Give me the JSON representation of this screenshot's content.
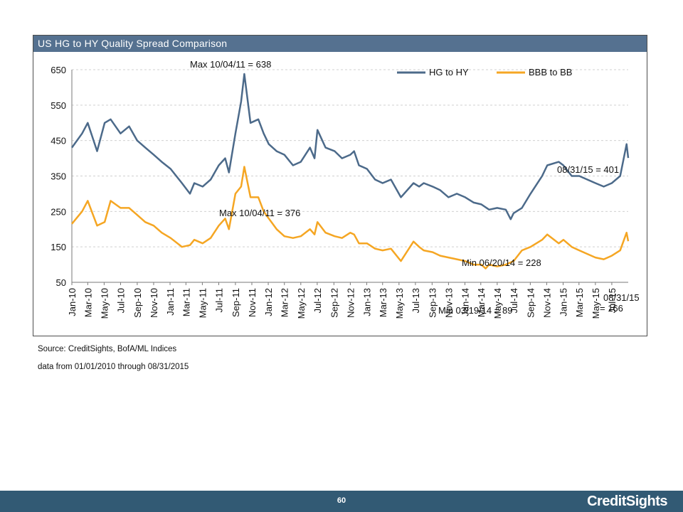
{
  "chart_data": {
    "type": "line",
    "title": "US HG to HY Quality Spread Comparison",
    "xlabel": "",
    "ylabel": "",
    "x_range": [
      "2010-01-01",
      "2015-08-31"
    ],
    "ylim": [
      50,
      650
    ],
    "yticks": [
      50,
      150,
      250,
      350,
      450,
      550,
      650
    ],
    "xtick_labels": [
      "Jan-10",
      "Mar-10",
      "May-10",
      "Jul-10",
      "Sep-10",
      "Nov-10",
      "Jan-11",
      "Mar-11",
      "May-11",
      "Jul-11",
      "Sep-11",
      "Nov-11",
      "Jan-12",
      "Mar-12",
      "May-12",
      "Jul-12",
      "Sep-12",
      "Nov-12",
      "Jan-13",
      "Mar-13",
      "May-13",
      "Jul-13",
      "Sep-13",
      "Nov-13",
      "Jan-14",
      "Mar-14",
      "May-14",
      "Jul-14",
      "Sep-14",
      "Nov-14",
      "Jan-15",
      "Mar-15",
      "May-15",
      "Jul-15"
    ],
    "grid": true,
    "legend_position": "top-right",
    "series": [
      {
        "name": "HG to HY",
        "color": "#4c6a8a",
        "x": [
          "2010-01-01",
          "2010-02-08",
          "2010-03-01",
          "2010-04-05",
          "2010-05-03",
          "2010-05-25",
          "2010-07-01",
          "2010-08-02",
          "2010-09-01",
          "2010-10-01",
          "2010-11-01",
          "2010-12-01",
          "2011-01-03",
          "2011-02-14",
          "2011-03-16",
          "2011-04-01",
          "2011-05-02",
          "2011-06-01",
          "2011-07-01",
          "2011-07-25",
          "2011-08-08",
          "2011-09-01",
          "2011-09-22",
          "2011-10-04",
          "2011-10-27",
          "2011-11-25",
          "2011-12-15",
          "2012-01-03",
          "2012-02-01",
          "2012-03-01",
          "2012-04-02",
          "2012-05-01",
          "2012-06-04",
          "2012-06-21",
          "2012-07-02",
          "2012-08-01",
          "2012-09-04",
          "2012-10-01",
          "2012-11-01",
          "2012-11-15",
          "2012-12-03",
          "2013-01-02",
          "2013-02-01",
          "2013-03-01",
          "2013-04-01",
          "2013-05-08",
          "2013-06-24",
          "2013-07-15",
          "2013-08-01",
          "2013-09-03",
          "2013-10-01",
          "2013-11-01",
          "2013-12-02",
          "2014-01-02",
          "2014-02-03",
          "2014-03-03",
          "2014-04-01",
          "2014-05-01",
          "2014-06-02",
          "2014-06-20",
          "2014-07-01",
          "2014-08-01",
          "2014-09-02",
          "2014-10-15",
          "2014-11-03",
          "2014-12-16",
          "2015-01-02",
          "2015-02-02",
          "2015-03-02",
          "2015-04-01",
          "2015-05-01",
          "2015-06-01",
          "2015-07-01",
          "2015-08-01",
          "2015-08-25",
          "2015-08-31"
        ],
        "values": [
          430,
          470,
          500,
          420,
          500,
          510,
          470,
          490,
          450,
          430,
          410,
          390,
          370,
          330,
          300,
          330,
          320,
          340,
          380,
          400,
          360,
          470,
          560,
          638,
          500,
          510,
          470,
          440,
          420,
          410,
          380,
          390,
          430,
          400,
          480,
          430,
          420,
          400,
          410,
          420,
          380,
          370,
          340,
          330,
          340,
          290,
          330,
          320,
          330,
          320,
          310,
          290,
          300,
          290,
          275,
          270,
          255,
          260,
          255,
          228,
          245,
          260,
          300,
          350,
          380,
          390,
          380,
          350,
          350,
          340,
          330,
          320,
          330,
          350,
          440,
          401
        ]
      },
      {
        "name": "BBB to BB",
        "color": "#f5a623",
        "x": [
          "2010-01-01",
          "2010-02-08",
          "2010-03-01",
          "2010-04-05",
          "2010-05-03",
          "2010-05-25",
          "2010-07-01",
          "2010-08-02",
          "2010-09-01",
          "2010-10-01",
          "2010-11-01",
          "2010-12-01",
          "2011-01-03",
          "2011-02-14",
          "2011-03-16",
          "2011-04-01",
          "2011-05-02",
          "2011-06-01",
          "2011-07-01",
          "2011-07-25",
          "2011-08-08",
          "2011-09-01",
          "2011-09-22",
          "2011-10-04",
          "2011-10-27",
          "2011-11-25",
          "2011-12-15",
          "2012-01-03",
          "2012-02-01",
          "2012-03-01",
          "2012-04-02",
          "2012-05-01",
          "2012-06-04",
          "2012-06-21",
          "2012-07-02",
          "2012-08-01",
          "2012-09-04",
          "2012-10-01",
          "2012-11-01",
          "2012-11-15",
          "2012-12-03",
          "2013-01-02",
          "2013-02-01",
          "2013-03-01",
          "2013-04-01",
          "2013-05-08",
          "2013-06-24",
          "2013-07-15",
          "2013-08-01",
          "2013-09-03",
          "2013-10-01",
          "2013-11-01",
          "2013-12-02",
          "2014-01-02",
          "2014-02-03",
          "2014-03-03",
          "2014-03-19",
          "2014-04-01",
          "2014-05-01",
          "2014-06-02",
          "2014-07-01",
          "2014-08-01",
          "2014-09-02",
          "2014-10-15",
          "2014-11-03",
          "2014-12-16",
          "2015-01-02",
          "2015-02-02",
          "2015-03-02",
          "2015-04-01",
          "2015-05-01",
          "2015-06-01",
          "2015-07-01",
          "2015-08-01",
          "2015-08-25",
          "2015-08-31"
        ],
        "values": [
          215,
          250,
          280,
          210,
          220,
          280,
          260,
          260,
          240,
          220,
          210,
          190,
          175,
          150,
          155,
          170,
          160,
          175,
          210,
          230,
          200,
          300,
          320,
          376,
          290,
          290,
          250,
          230,
          200,
          180,
          175,
          180,
          200,
          185,
          220,
          190,
          180,
          175,
          190,
          185,
          160,
          160,
          145,
          140,
          145,
          110,
          165,
          150,
          140,
          135,
          125,
          120,
          115,
          110,
          100,
          100,
          89,
          100,
          95,
          100,
          110,
          140,
          150,
          170,
          185,
          160,
          170,
          150,
          140,
          130,
          120,
          115,
          125,
          140,
          190,
          166
        ]
      }
    ],
    "annotations": {
      "hg_max": "Max 10/04/11 = 638",
      "bbb_max": "Max 10/04/11 = 376",
      "hg_last": "08/31/15 = 401",
      "hg_min": "Min 06/20/14 = 228",
      "bbb_min": "Min 03/19/14 = 89",
      "bbb_last_line1": "08/31/15",
      "bbb_last_line2": "= 166"
    }
  },
  "footnotes": {
    "source": "Source: CreditSights, BofA/ML Indices",
    "range": "data from 01/01/2010 through 08/31/2015"
  },
  "footer": {
    "page_number": "60",
    "brand": "CreditSights",
    "bar_color": "#325a74"
  }
}
